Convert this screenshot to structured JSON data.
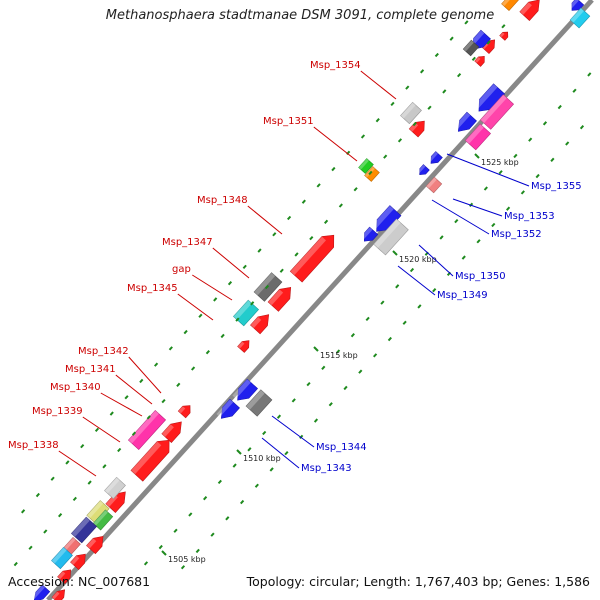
{
  "title": "Methanosphaera stadtmanae DSM 3091, complete genome",
  "footer": {
    "accession": "Accession: NC_007681",
    "summary": "Topology: circular; Length: 1,767,403 bp; Genes: 1,586"
  },
  "colors": {
    "forward": "#ff1c1c",
    "reverse": "#2020ee",
    "backbone": "#888888",
    "tick": "#1e8a1e",
    "label_forward": "#cc0000",
    "label_reverse": "#0000cc"
  },
  "scale_labels": [
    "1505 kbp",
    "1510 kbp",
    "1515 kbp",
    "1520 kbp",
    "1525 kbp"
  ],
  "forward_labels": [
    "Msp_1354",
    "Msp_1351",
    "Msp_1348",
    "Msp_1347",
    "gap",
    "Msp_1345",
    "Msp_1342",
    "Msp_1341",
    "Msp_1340",
    "Msp_1339",
    "Msp_1338"
  ],
  "reverse_labels": [
    "Msp_1355",
    "Msp_1353",
    "Msp_1352",
    "Msp_1350",
    "Msp_1349",
    "Msp_1344",
    "Msp_1343"
  ]
}
